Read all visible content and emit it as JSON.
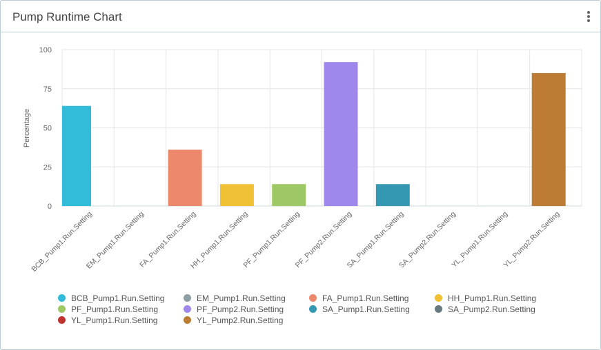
{
  "header": {
    "title": "Pump Runtime Chart",
    "menu_icon": "kebab-menu-icon"
  },
  "chart_data": {
    "type": "bar",
    "title": "Pump Runtime Chart",
    "ylabel": "Percentage",
    "xlabel": "",
    "ylim": [
      0,
      100
    ],
    "yticks": [
      "0",
      "25",
      "50",
      "75",
      "100"
    ],
    "grid": true,
    "legend_position": "bottom",
    "categories": [
      "BCB_Pump1.Run.Setting",
      "EM_Pump1.Run.Setting",
      "FA_Pump1.Run.Setting",
      "HH_Pump1.Run.Setting",
      "PF_Pump1.Run.Setting",
      "PF_Pump2.Run.Setting",
      "SA_Pump1.Run.Setting",
      "SA_Pump2.Run.Setting",
      "YL_Pump1.Run.Setting",
      "YL_Pump2.Run.Setting"
    ],
    "values": [
      64,
      0,
      36,
      14,
      14,
      92,
      14,
      0,
      0,
      85
    ],
    "colors": [
      "#33bcda",
      "#8e9ea3",
      "#ec886c",
      "#f1c135",
      "#9ec865",
      "#9e88ec",
      "#3498b3",
      "#667a80",
      "#c0332f",
      "#bc7c34"
    ]
  }
}
